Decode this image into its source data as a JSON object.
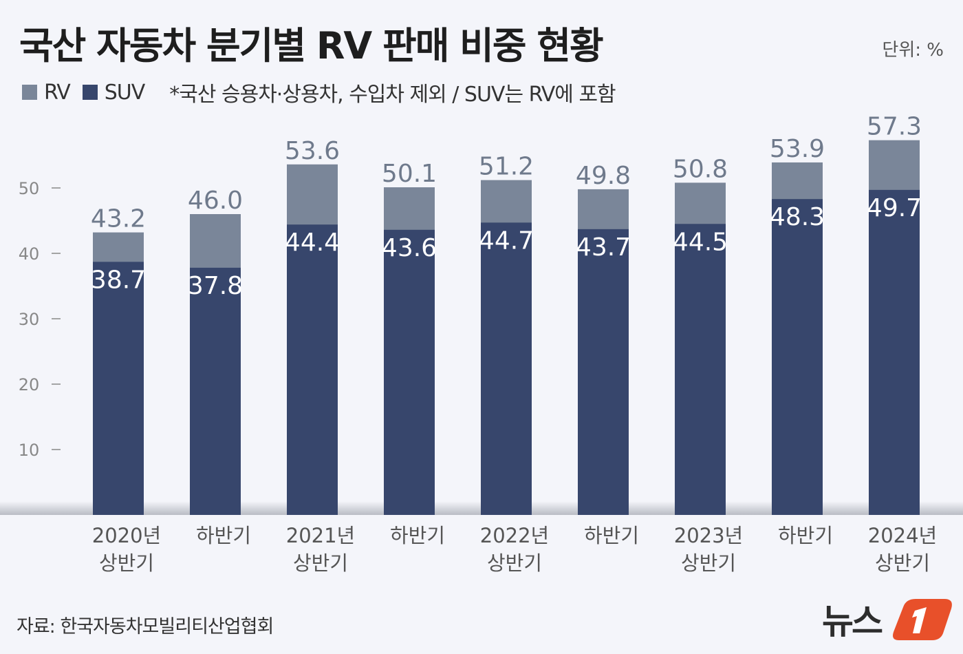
{
  "title": "국산 자동차 분기별 RV 판매 비중 현황",
  "unit": "단위: %",
  "note": "*국산 승용차·상용차, 수입차 제외 / SUV는 RV에 포함",
  "source": "자료: 한국자동차모빌리티산업협회",
  "logo_text": "뉴스1",
  "chart_data": {
    "type": "bar",
    "stacking": "overlay",
    "categories": [
      [
        "2020년",
        "상반기"
      ],
      [
        "하반기"
      ],
      [
        "2021년",
        "상반기"
      ],
      [
        "하반기"
      ],
      [
        "2022년",
        "상반기"
      ],
      [
        "하반기"
      ],
      [
        "2023년",
        "상반기"
      ],
      [
        "하반기"
      ],
      [
        "2024년",
        "상반기"
      ]
    ],
    "series": [
      {
        "name": "RV",
        "color": "#7a8699",
        "values": [
          43.2,
          46.0,
          53.6,
          50.1,
          51.2,
          49.8,
          50.8,
          53.9,
          57.3
        ]
      },
      {
        "name": "SUV",
        "color": "#37466c",
        "values": [
          38.7,
          37.8,
          44.4,
          43.6,
          44.7,
          43.7,
          44.5,
          48.3,
          49.7
        ]
      }
    ],
    "yticks": [
      10,
      20,
      30,
      40,
      50
    ],
    "ylim": [
      0,
      60
    ],
    "grid": false,
    "legend": "top-left"
  }
}
